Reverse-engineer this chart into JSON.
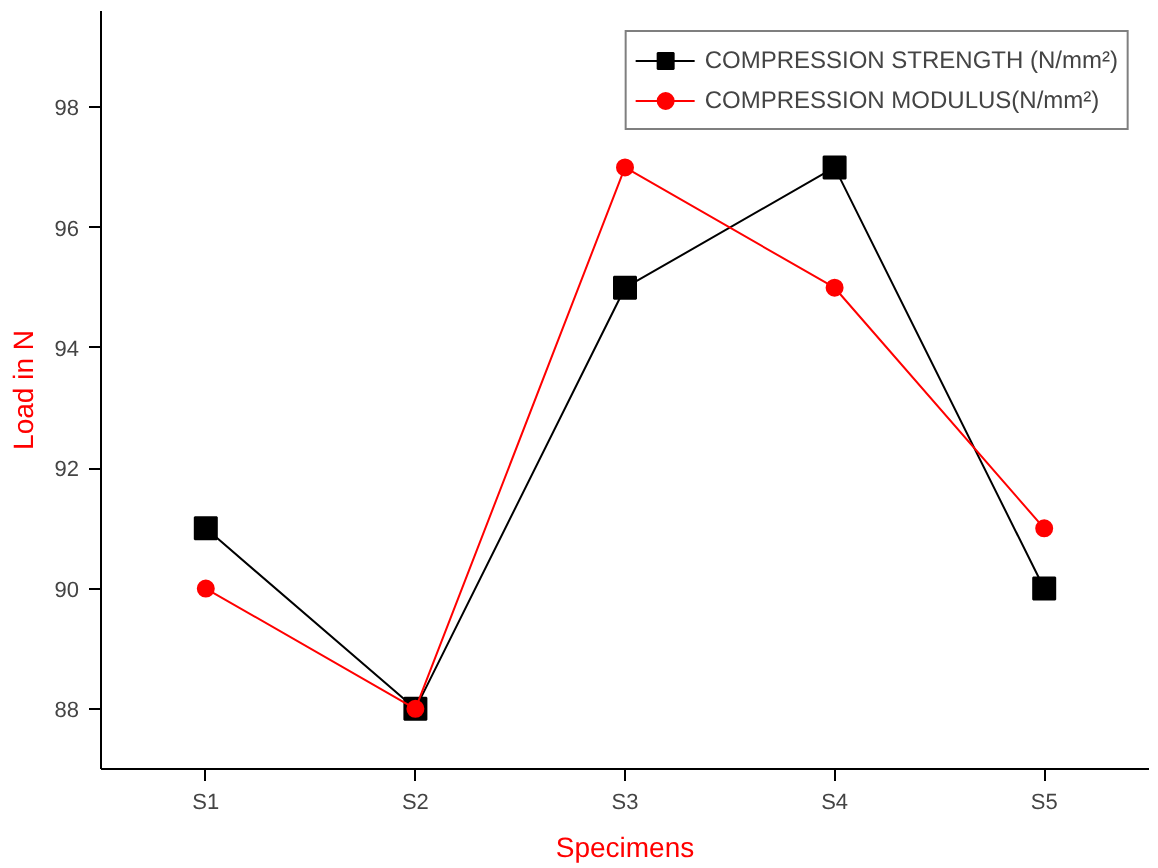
{
  "chart_data": {
    "type": "line",
    "xlabel": "Specimens",
    "ylabel": "Load in N",
    "categories": [
      "S1",
      "S2",
      "S3",
      "S4",
      "S5"
    ],
    "series": [
      {
        "name": "COMPRESSION STRENGTH (N/mm²)",
        "color": "#000000",
        "marker": "square",
        "values": [
          91,
          88,
          95,
          97,
          90
        ]
      },
      {
        "name": "COMPRESSION MODULUS(N/mm²)",
        "color": "#ff0000",
        "marker": "circle",
        "values": [
          90,
          88,
          97,
          95,
          91
        ]
      }
    ],
    "ylim": [
      87,
      99.6
    ],
    "yticks": [
      88,
      90,
      92,
      94,
      96,
      98
    ],
    "grid": false,
    "legend": "top right",
    "line_style": "solid"
  }
}
